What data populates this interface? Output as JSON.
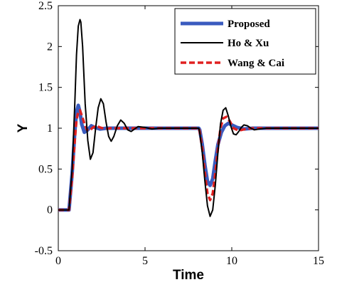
{
  "chart_data": {
    "type": "line",
    "title": "",
    "xlabel": "Time",
    "ylabel": "Y",
    "xlim": [
      0,
      15
    ],
    "ylim": [
      -0.5,
      2.5
    ],
    "xticks": [
      "0",
      "5",
      "10",
      "15"
    ],
    "yticks": [
      "-0.5",
      "0",
      "0.5",
      "1",
      "1.5",
      "2",
      "2.5"
    ],
    "grid": false,
    "legend_position": "top-right",
    "series": [
      {
        "name": "Proposed",
        "color": "#3a5bbf",
        "style": "solid-thick",
        "x": [
          0,
          0.6,
          0.62,
          0.8,
          0.95,
          1.05,
          1.15,
          1.25,
          1.35,
          1.5,
          1.7,
          1.9,
          2.1,
          2.4,
          2.8,
          3.2,
          8.1,
          8.15,
          8.3,
          8.45,
          8.6,
          8.75,
          8.9,
          9.05,
          9.2,
          9.4,
          9.6,
          9.8,
          10.0,
          10.3,
          10.7,
          11.2,
          15
        ],
        "y": [
          0,
          0,
          0,
          0.45,
          0.95,
          1.2,
          1.28,
          1.2,
          1.05,
          0.95,
          0.98,
          1.03,
          1.01,
          0.99,
          1.0,
          1.0,
          1.0,
          0.98,
          0.8,
          0.55,
          0.35,
          0.3,
          0.38,
          0.6,
          0.8,
          0.95,
          1.03,
          1.06,
          1.04,
          1.01,
          0.99,
          1.0,
          1.0
        ]
      },
      {
        "name": "Ho & Xu",
        "color": "#000000",
        "style": "solid-thin",
        "x": [
          0,
          0.6,
          0.62,
          0.8,
          0.95,
          1.05,
          1.15,
          1.25,
          1.3,
          1.4,
          1.55,
          1.7,
          1.85,
          2.0,
          2.15,
          2.3,
          2.45,
          2.6,
          2.75,
          2.9,
          3.05,
          3.2,
          3.4,
          3.6,
          3.8,
          4.0,
          4.2,
          4.4,
          4.6,
          5.0,
          5.4,
          5.8,
          6.2,
          8.1,
          8.15,
          8.3,
          8.45,
          8.6,
          8.75,
          8.9,
          9.05,
          9.2,
          9.35,
          9.5,
          9.65,
          9.8,
          9.95,
          10.1,
          10.25,
          10.4,
          10.55,
          10.7,
          10.9,
          11.1,
          11.3,
          11.6,
          12.0,
          15
        ],
        "y": [
          0,
          0,
          0,
          0.5,
          1.3,
          1.9,
          2.25,
          2.33,
          2.3,
          2.0,
          1.3,
          0.85,
          0.62,
          0.7,
          1.0,
          1.25,
          1.36,
          1.3,
          1.08,
          0.9,
          0.84,
          0.9,
          1.03,
          1.1,
          1.06,
          0.98,
          0.96,
          0.99,
          1.02,
          1.01,
          0.99,
          1.0,
          1.0,
          1.0,
          0.95,
          0.7,
          0.35,
          0.05,
          -0.08,
          0.0,
          0.3,
          0.7,
          1.05,
          1.22,
          1.25,
          1.15,
          1.02,
          0.93,
          0.92,
          0.96,
          1.01,
          1.04,
          1.03,
          1.0,
          0.98,
          0.99,
          1.0,
          1.0
        ]
      },
      {
        "name": "Wang & Cai",
        "color": "#e02020",
        "style": "dashed",
        "x": [
          0,
          0.6,
          0.62,
          0.8,
          0.95,
          1.05,
          1.15,
          1.25,
          1.35,
          1.5,
          1.65,
          1.8,
          2.0,
          2.2,
          2.4,
          2.7,
          3.0,
          3.4,
          8.1,
          8.15,
          8.3,
          8.45,
          8.6,
          8.75,
          8.9,
          9.05,
          9.2,
          9.35,
          9.5,
          9.7,
          9.9,
          10.1,
          10.4,
          10.8,
          11.2,
          15
        ],
        "y": [
          0,
          0,
          0,
          0.4,
          0.85,
          1.1,
          1.2,
          1.22,
          1.16,
          1.06,
          0.98,
          0.97,
          1.01,
          1.03,
          1.01,
          0.99,
          1.0,
          1.0,
          1.0,
          0.96,
          0.75,
          0.45,
          0.2,
          0.12,
          0.2,
          0.45,
          0.75,
          1.0,
          1.12,
          1.14,
          1.08,
          1.0,
          0.97,
          0.99,
          1.0,
          1.0
        ]
      }
    ]
  }
}
